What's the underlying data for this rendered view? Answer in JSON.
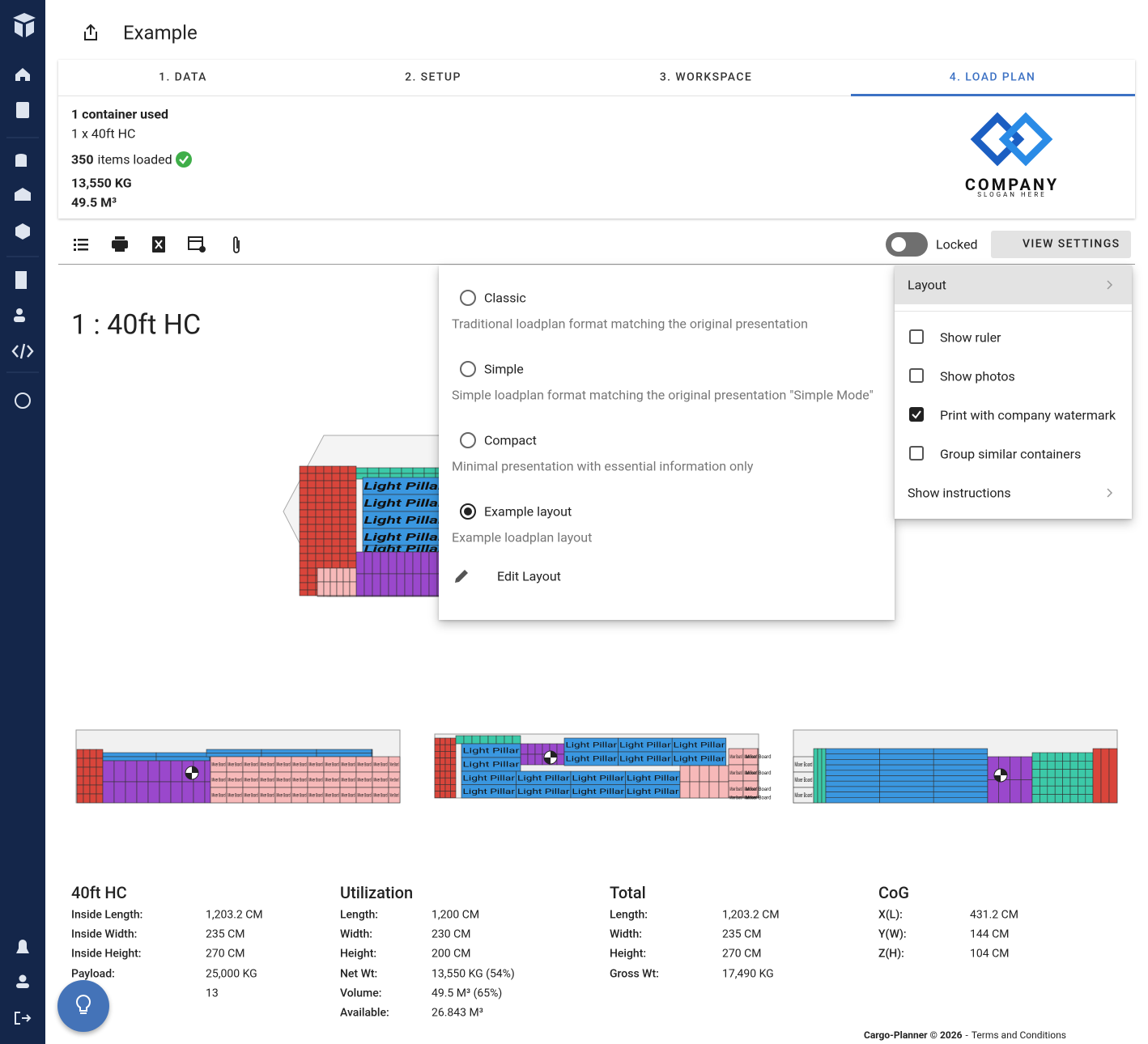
{
  "header": {
    "title": "Example"
  },
  "tabs": [
    "1. DATA",
    "2. SETUP",
    "3. WORKSPACE",
    "4. LOAD PLAN"
  ],
  "active_tab": 3,
  "summary": {
    "containers": "1 container used",
    "container_list": "1 x 40ft HC",
    "items_count": "350",
    "items_text": "items loaded",
    "weight": "13,550 KG",
    "volume": "49.5 M³"
  },
  "logo": {
    "name": "COMPANY",
    "slogan": "SLOGAN HERE"
  },
  "toolbar": {
    "lock_label": "Locked",
    "lock_on": false,
    "view_settings": "VIEW SETTINGS"
  },
  "container_title": "1 : 40ft HC",
  "item_labels": [
    "Light Pillar",
    "Mixer Board"
  ],
  "layout_menu": {
    "options": [
      {
        "name": "Classic",
        "description": "Traditional loadplan format matching the original presentation",
        "selected": false
      },
      {
        "name": "Simple",
        "description": "Simple loadplan format matching the original presentation \"Simple Mode\"",
        "selected": false
      },
      {
        "name": "Compact",
        "description": "Minimal presentation with essential information only",
        "selected": false
      },
      {
        "name": "Example layout",
        "description": "Example loadplan layout",
        "selected": true
      }
    ],
    "edit": "Edit Layout"
  },
  "settings_menu": {
    "layout": "Layout",
    "options": [
      {
        "label": "Show ruler",
        "checked": false
      },
      {
        "label": "Show photos",
        "checked": false
      },
      {
        "label": "Print with company watermark",
        "checked": true
      },
      {
        "label": "Group similar containers",
        "checked": false
      }
    ],
    "instructions": "Show instructions"
  },
  "stats": [
    {
      "title": "40ft HC",
      "rows": [
        {
          "label": "Inside Length:",
          "value": "1,203.2 CM"
        },
        {
          "label": "Inside Width:",
          "value": "235 CM"
        },
        {
          "label": "Inside Height:",
          "value": "270 CM"
        },
        {
          "label": "Payload:",
          "value": "25,000 KG"
        },
        {
          "value": "13"
        }
      ]
    },
    {
      "title": "Utilization",
      "rows": [
        {
          "label": "Length:",
          "value": "1,200 CM"
        },
        {
          "label": "Width:",
          "value": "230 CM"
        },
        {
          "label": "Height:",
          "value": "200 CM"
        },
        {
          "label": "Net Wt:",
          "value": "13,550 KG (54%)"
        },
        {
          "label": "Volume:",
          "value": "49.5 M³ (65%)"
        },
        {
          "label": "Available:",
          "value": "26.843 M³"
        }
      ]
    },
    {
      "title": "Total",
      "rows": [
        {
          "label": "Length:",
          "value": "1,203.2 CM"
        },
        {
          "label": "Width:",
          "value": "235 CM"
        },
        {
          "label": "Height:",
          "value": "270 CM"
        },
        {
          "label": "Gross Wt:",
          "value": "17,490 KG"
        }
      ]
    },
    {
      "title": "CoG",
      "rows": [
        {
          "label": "X(L):",
          "value": "431.2 CM"
        },
        {
          "label": "Y(W):",
          "value": "144 CM"
        },
        {
          "label": "Z(H):",
          "value": "104 CM"
        }
      ]
    }
  ],
  "footer": {
    "brand": "Cargo-Planner © 2026",
    "separator": "-",
    "link": "Terms and Conditions"
  }
}
